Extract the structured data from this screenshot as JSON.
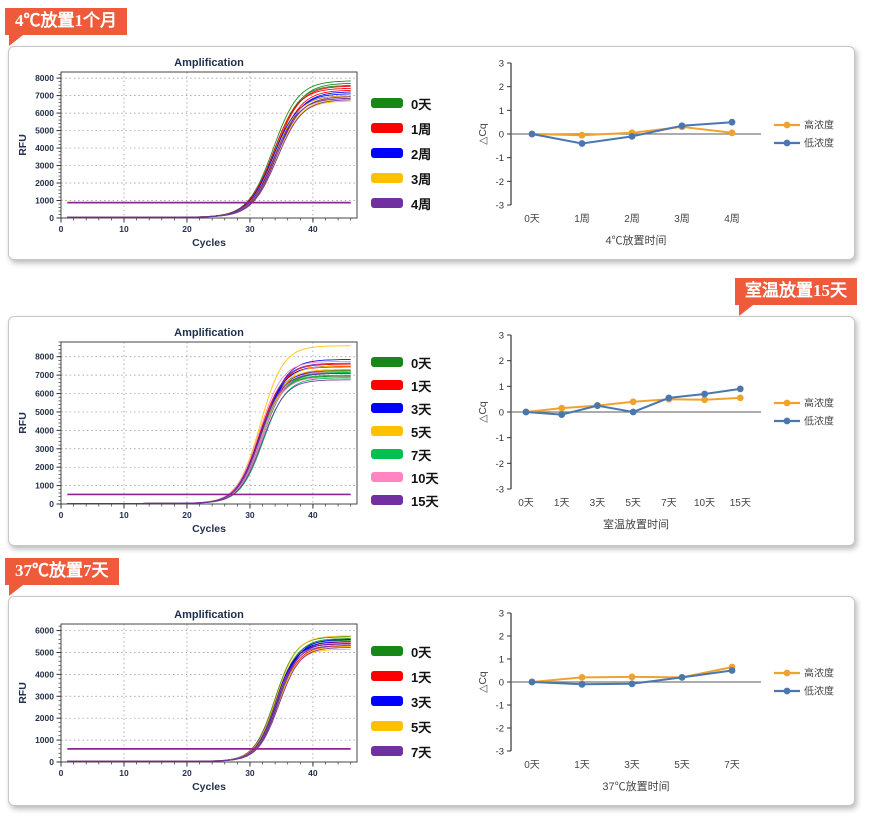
{
  "panels": [
    {
      "badge": "4℃放置1个月",
      "badge_align": "left"
    },
    {
      "badge": "室温放置15天",
      "badge_align": "right"
    },
    {
      "badge": "37℃放置7天",
      "badge_align": "left"
    }
  ],
  "colors": {
    "badge_background": "#ee5a3a",
    "badge_text": "#ffffff",
    "threshold_line": "#8e2490",
    "zero_line": "#7a7a7a",
    "high_concentration": "#f0a22e",
    "low_concentration": "#4a77ad"
  },
  "chart_data": [
    {
      "type": "line",
      "subtype": "qpcr-amplification",
      "title": "Amplification",
      "xlabel": "Cycles",
      "ylabel": "RFU",
      "xlim": [
        0,
        47
      ],
      "xticks": [
        0,
        10,
        20,
        30,
        40
      ],
      "xminor": 2,
      "ylim": [
        0,
        8350
      ],
      "yticks": [
        0,
        1000,
        2000,
        3000,
        4000,
        5000,
        6000,
        7000,
        8000
      ],
      "yminor": 200,
      "grid": "dotted",
      "threshold": 880,
      "sigmoid": {
        "midpoint": 34.0,
        "steepness": 0.5,
        "baseline": 45,
        "xstart": 1,
        "xend": 46
      },
      "series": [
        {
          "label": "0天",
          "color": "#178717",
          "plateaus": [
            7850,
            7720,
            7600
          ]
        },
        {
          "label": "1周",
          "color": "#fe0000",
          "plateaus": [
            7550,
            7430,
            7320
          ]
        },
        {
          "label": "2周",
          "color": "#0000fe",
          "plateaus": [
            7230,
            7120,
            7000
          ]
        },
        {
          "label": "3周",
          "color": "#ffc000",
          "plateaus": [
            7000,
            6850,
            6700
          ]
        },
        {
          "label": "4周",
          "color": "#7030a0",
          "plateaus": [
            6950,
            6860,
            6780
          ]
        }
      ]
    },
    {
      "type": "line",
      "subtype": "delta-cq",
      "ylabel": "△Cq",
      "xlabel": "4℃放置时间",
      "ylim": [
        -3,
        3
      ],
      "yticks": [
        3,
        2,
        1,
        0,
        -1,
        -2,
        -3
      ],
      "zero_line": true,
      "categories": [
        "0天",
        "1周",
        "2周",
        "3周",
        "4周"
      ],
      "legend_position": "right",
      "series": [
        {
          "name": "高浓度",
          "color": "#f0a22e",
          "values": [
            0,
            -0.05,
            0.05,
            0.3,
            0.05
          ]
        },
        {
          "name": "低浓度",
          "color": "#4a77ad",
          "values": [
            0,
            -0.4,
            -0.1,
            0.35,
            0.5
          ]
        }
      ]
    },
    {
      "type": "line",
      "subtype": "qpcr-amplification",
      "title": "Amplification",
      "xlabel": "Cycles",
      "ylabel": "RFU",
      "xlim": [
        0,
        47
      ],
      "xticks": [
        0,
        10,
        20,
        30,
        40
      ],
      "xminor": 2,
      "ylim": [
        0,
        8800
      ],
      "yticks": [
        0,
        1000,
        2000,
        3000,
        4000,
        5000,
        6000,
        7000,
        8000
      ],
      "yminor": 200,
      "grid": "dotted",
      "threshold": 520,
      "sigmoid": {
        "midpoint": 31.8,
        "steepness": 0.55,
        "baseline": 35,
        "xstart": 1,
        "xend": 46
      },
      "series": [
        {
          "label": "0天",
          "color": "#178717",
          "plateaus": [
            7250,
            7100,
            6950
          ]
        },
        {
          "label": "1天",
          "color": "#fe0000",
          "plateaus": [
            7600,
            7450,
            7300
          ]
        },
        {
          "label": "3天",
          "color": "#0000fe",
          "plateaus": [
            7850,
            7500,
            7200
          ]
        },
        {
          "label": "5天",
          "color": "#ffc000",
          "plateaus": [
            8600,
            7500,
            7300
          ]
        },
        {
          "label": "7天",
          "color": "#00c050",
          "plateaus": [
            7150,
            7000,
            6850
          ]
        },
        {
          "label": "10天",
          "color": "#ff85c2",
          "plateaus": [
            7750,
            7200,
            6900
          ]
        },
        {
          "label": "15天",
          "color": "#7030a0",
          "plateaus": [
            7650,
            7100,
            6750
          ]
        }
      ]
    },
    {
      "type": "line",
      "subtype": "delta-cq",
      "ylabel": "△Cq",
      "xlabel": "室温放置时间",
      "ylim": [
        -3,
        3
      ],
      "yticks": [
        3,
        2,
        1,
        0,
        -1,
        -2,
        -3
      ],
      "zero_line": true,
      "categories": [
        "0天",
        "1天",
        "3天",
        "5天",
        "7天",
        "10天",
        "15天"
      ],
      "legend_position": "right",
      "series": [
        {
          "name": "高浓度",
          "color": "#f0a22e",
          "values": [
            0,
            0.15,
            0.25,
            0.4,
            0.5,
            0.48,
            0.55
          ]
        },
        {
          "name": "低浓度",
          "color": "#4a77ad",
          "values": [
            0,
            -0.1,
            0.25,
            0,
            0.55,
            0.7,
            0.9
          ]
        }
      ]
    },
    {
      "type": "line",
      "subtype": "qpcr-amplification",
      "title": "Amplification",
      "xlabel": "Cycles",
      "ylabel": "RFU",
      "xlim": [
        0,
        47
      ],
      "xticks": [
        0,
        10,
        20,
        30,
        40
      ],
      "xminor": 2,
      "ylim": [
        0,
        6300
      ],
      "yticks": [
        0,
        1000,
        2000,
        3000,
        4000,
        5000,
        6000
      ],
      "yminor": 200,
      "grid": "dotted",
      "threshold": 600,
      "sigmoid": {
        "midpoint": 34.3,
        "steepness": 0.6,
        "baseline": 35,
        "xstart": 1,
        "xend": 46
      },
      "series": [
        {
          "label": "0天",
          "color": "#178717",
          "plateaus": [
            5720,
            5640,
            5560
          ]
        },
        {
          "label": "1天",
          "color": "#fe0000",
          "plateaus": [
            5480,
            5390,
            5300
          ]
        },
        {
          "label": "3天",
          "color": "#0000fe",
          "plateaus": [
            5600,
            5500,
            5400
          ]
        },
        {
          "label": "5天",
          "color": "#ffc000",
          "plateaus": [
            5760,
            5280,
            5150
          ]
        },
        {
          "label": "7天",
          "color": "#7030a0",
          "plateaus": [
            5420,
            5320,
            5230
          ]
        }
      ]
    },
    {
      "type": "line",
      "subtype": "delta-cq",
      "ylabel": "△Cq",
      "xlabel": "37℃放置时间",
      "ylim": [
        -3,
        3
      ],
      "yticks": [
        3,
        2,
        1,
        0,
        -1,
        -2,
        -3
      ],
      "zero_line": true,
      "categories": [
        "0天",
        "1天",
        "3天",
        "5天",
        "7天"
      ],
      "legend_position": "right",
      "series": [
        {
          "name": "高浓度",
          "color": "#f0a22e",
          "values": [
            0,
            0.2,
            0.22,
            0.2,
            0.65
          ]
        },
        {
          "name": "低浓度",
          "color": "#4a77ad",
          "values": [
            0,
            -0.1,
            -0.08,
            0.2,
            0.5
          ]
        }
      ]
    }
  ]
}
